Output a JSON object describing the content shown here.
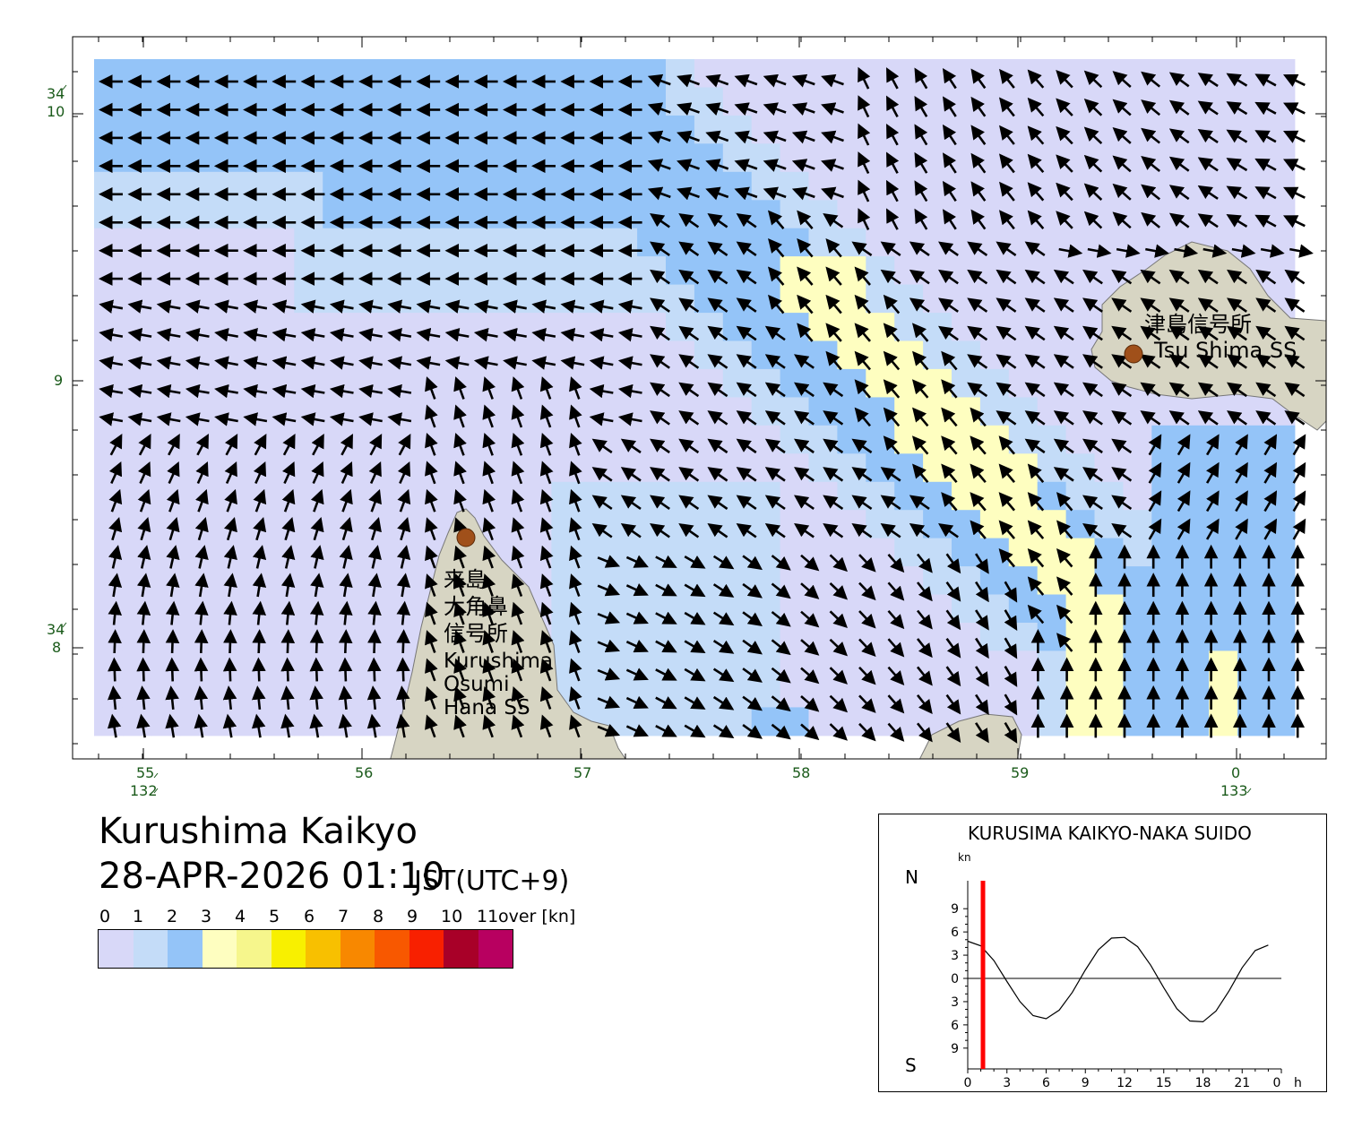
{
  "title": "Kurushima Kaikyo",
  "datetime": "28-APR-2026 01:10",
  "timezone": "JST(UTC+9)",
  "legend": {
    "labels": [
      "0",
      "1",
      "2",
      "3",
      "4",
      "5",
      "6",
      "7",
      "8",
      "9",
      "10",
      "11"
    ],
    "unit": "over [kn]",
    "colors": [
      "#d8d8f8",
      "#c4dcf8",
      "#94c4f8",
      "#fefec0",
      "#f6f68c",
      "#f8f000",
      "#f8c000",
      "#f88800",
      "#f85800",
      "#f82000",
      "#a80028",
      "#b80060"
    ]
  },
  "axes": {
    "lat_top": "34",
    "lat_10": "10",
    "lat_9": "9",
    "lat_34b": "34",
    "lat_8": "8",
    "lon_55": "55",
    "lon_132": "132",
    "lon_56": "56",
    "lon_57": "57",
    "lon_58": "58",
    "lon_59": "59",
    "lon_0": "0",
    "lon_133": "133"
  },
  "stations": {
    "tsushima_jp": "津島信号所",
    "tsushima_en": "Tsu Shima SS",
    "kurushima_jp1": "来島",
    "kurushima_jp2": "大角鼻",
    "kurushima_jp3": "信号所",
    "kurushima_en1": "Kurushima",
    "kurushima_en2": "Osumi",
    "kurushima_en3": "Hana SS"
  },
  "tide_chart": {
    "title": "KURUSIMA KAIKYO-NAKA SUIDO",
    "unit": "kn",
    "north": "N",
    "south": "S",
    "y_ticks": [
      "9",
      "6",
      "3",
      "0",
      "3",
      "6",
      "9"
    ],
    "x_ticks": [
      "0",
      "3",
      "6",
      "9",
      "12",
      "15",
      "18",
      "21",
      "0"
    ],
    "x_unit": "h",
    "current_hour": 1.1667,
    "curve": [
      [
        0,
        4.8
      ],
      [
        1,
        4.2
      ],
      [
        2,
        2.3
      ],
      [
        3,
        -0.4
      ],
      [
        4,
        -3.0
      ],
      [
        5,
        -4.8
      ],
      [
        6,
        -5.2
      ],
      [
        7,
        -4.1
      ],
      [
        8,
        -1.8
      ],
      [
        9,
        1.1
      ],
      [
        10,
        3.7
      ],
      [
        11,
        5.2
      ],
      [
        12,
        5.3
      ],
      [
        13,
        4.1
      ],
      [
        14,
        1.7
      ],
      [
        15,
        -1.2
      ],
      [
        16,
        -3.9
      ],
      [
        17,
        -5.5
      ],
      [
        18,
        -5.6
      ],
      [
        19,
        -4.2
      ],
      [
        20,
        -1.6
      ],
      [
        21,
        1.4
      ],
      [
        22,
        3.6
      ],
      [
        23,
        4.3
      ]
    ]
  }
}
